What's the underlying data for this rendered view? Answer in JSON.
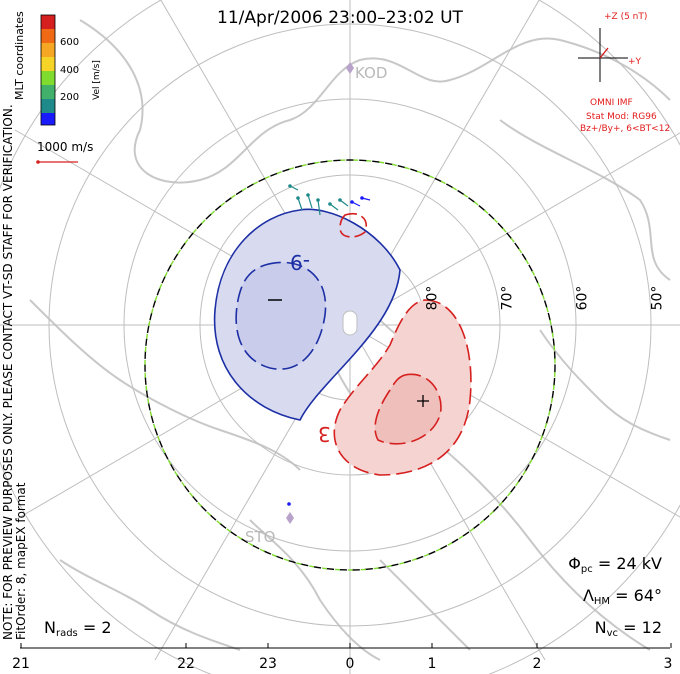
{
  "title": "11/Apr/2006 23:00–23:02 UT",
  "colorbar": {
    "title": "Vel [m/s]",
    "ticks": [
      "600",
      "400",
      "200"
    ],
    "colors": [
      "#1a1aff",
      "#1f8a8a",
      "#40b06b",
      "#7fdc2e",
      "#f5d327",
      "#f5a623",
      "#f06a16",
      "#d61f1f"
    ],
    "mlt_label": "MLT coordinates"
  },
  "vector_scale": "1000 m/s",
  "imf": {
    "z_label": "+Z (5 nT)",
    "y_label": "+Y",
    "source": "OMNI IMF",
    "model": "Stat Mod: RG96",
    "condition": "Bz+/By+, 6<BT<12"
  },
  "note": "NOTE: FOR PREVIEW PURPOSES ONLY. PLEASE CONTACT VT-SD STAFF FOR VERIFICATION.",
  "fit_info": "FitOrder: 8, mapEX format",
  "station_labels": {
    "kod": "KOD",
    "sto": "STO"
  },
  "lat_labels": [
    "80°",
    "70°",
    "60°",
    "50°"
  ],
  "contour_labels": {
    "neg": "-9",
    "pos": "3"
  },
  "stats": {
    "phi_pc_sym": "Φ",
    "phi_pc_sub": "pc",
    "phi_pc_val": "= 24 kV",
    "lambda_hm_sym": "Λ",
    "lambda_hm_sub": "HM",
    "lambda_hm_val": "= 64°",
    "nvc_sym": "N",
    "nvc_sub": "vc",
    "nvc_val": "= 12",
    "nrads_sym": "N",
    "nrads_sub": "rads",
    "nrads_val": "= 2"
  },
  "mlt_ticks": [
    "21",
    "22",
    "23",
    "0",
    "1",
    "2",
    "3"
  ],
  "colors": {
    "coast": "#c8c8c8",
    "grid": "#bebebe",
    "negative_contour": "#1d2fa5",
    "positive_contour": "#d61f1f",
    "negative_fill": "#d8dbf0",
    "positive_fill": "#f5d3d0",
    "hmb_dash_green": "#7fdc2e"
  }
}
